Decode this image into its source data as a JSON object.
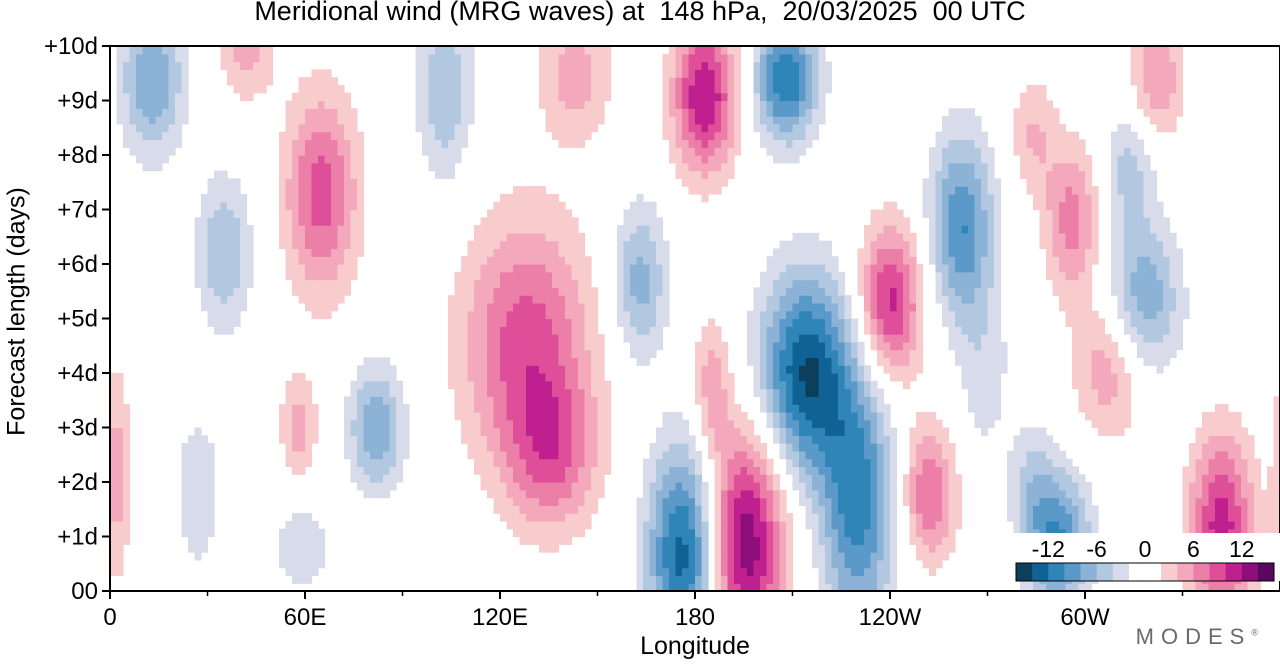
{
  "chart_data": {
    "type": "heatmap",
    "title": "Meridional wind (MRG waves) at  148 hPa,  20/03/2025  00 UTC",
    "xlabel": "Longitude",
    "ylabel": "Forecast length (days)",
    "x_ticks": [
      "0",
      "60E",
      "120E",
      "180",
      "120W",
      "60W"
    ],
    "y_ticks": [
      "00",
      "+1d",
      "+2d",
      "+3d",
      "+4d",
      "+5d",
      "+6d",
      "+7d",
      "+8d",
      "+9d",
      "+10d"
    ],
    "xlim": [
      0,
      360
    ],
    "ylim": [
      0,
      10
    ],
    "colorbar": {
      "tick_labels": [
        "-12",
        "-6",
        "0",
        "6",
        "12"
      ],
      "levels": [
        -14,
        -12,
        -10,
        -8,
        -6,
        -4,
        -2,
        2,
        4,
        6,
        8,
        10,
        12,
        14
      ],
      "colors": [
        "#0d3f5c",
        "#0f6394",
        "#2f84b8",
        "#5b9ac8",
        "#8cb3d6",
        "#b2c8e1",
        "#d8dcea",
        "#ffffff",
        "#f8cccc",
        "#f4a8bc",
        "#ec7fa7",
        "#df4f99",
        "#c0208f",
        "#8e0f7c",
        "#58085f"
      ]
    },
    "features": [
      {
        "lon": 195,
        "day": 0.9,
        "value": 14,
        "sx": 9,
        "sy": 1.5
      },
      {
        "lon": 177,
        "day": 0.7,
        "value": -14,
        "sx": 8,
        "sy": 1.4
      },
      {
        "lon": 214,
        "day": 4.0,
        "value": -14,
        "sx": 10,
        "sy": 1.3
      },
      {
        "lon": 230,
        "day": 1.6,
        "value": -11,
        "sx": 8,
        "sy": 1.7
      },
      {
        "lon": 208,
        "day": 9.4,
        "value": -12,
        "sx": 7,
        "sy": 0.8
      },
      {
        "lon": 183,
        "day": 9.1,
        "value": 12,
        "sx": 7,
        "sy": 1.0
      },
      {
        "lon": 240,
        "day": 5.3,
        "value": 11,
        "sx": 7,
        "sy": 1.0
      },
      {
        "lon": 262,
        "day": 6.7,
        "value": -10,
        "sx": 7,
        "sy": 1.2
      },
      {
        "lon": 252,
        "day": 1.8,
        "value": 8,
        "sx": 6,
        "sy": 0.9
      },
      {
        "lon": 128,
        "day": 4.6,
        "value": 9,
        "sx": 14,
        "sy": 1.6
      },
      {
        "lon": 136,
        "day": 2.5,
        "value": 7,
        "sx": 10,
        "sy": 1.0
      },
      {
        "lon": 65,
        "day": 7.3,
        "value": 9,
        "sx": 8,
        "sy": 1.3
      },
      {
        "lon": 82,
        "day": 3.0,
        "value": -8,
        "sx": 6,
        "sy": 0.8
      },
      {
        "lon": 35,
        "day": 6.2,
        "value": -6,
        "sx": 6,
        "sy": 1.0
      },
      {
        "lon": 13,
        "day": 9.4,
        "value": -8,
        "sx": 7,
        "sy": 1.0
      },
      {
        "lon": 42,
        "day": 10.0,
        "value": 5,
        "sx": 6,
        "sy": 0.7
      },
      {
        "lon": 103,
        "day": 9.2,
        "value": -6,
        "sx": 6,
        "sy": 1.2
      },
      {
        "lon": 143,
        "day": 9.5,
        "value": 5,
        "sx": 8,
        "sy": 0.9
      },
      {
        "lon": 163,
        "day": 5.7,
        "value": -7,
        "sx": 6,
        "sy": 1.0
      },
      {
        "lon": 296,
        "day": 6.8,
        "value": 7,
        "sx": 6,
        "sy": 1.0
      },
      {
        "lon": 318,
        "day": 5.3,
        "value": -8,
        "sx": 8,
        "sy": 1.0
      },
      {
        "lon": 308,
        "day": 4.1,
        "value": 6,
        "sx": 8,
        "sy": 0.9
      },
      {
        "lon": 314,
        "day": 7.8,
        "value": -5,
        "sx": 6,
        "sy": 0.8
      },
      {
        "lon": 322,
        "day": 9.4,
        "value": 6,
        "sx": 6,
        "sy": 0.9
      },
      {
        "lon": 342,
        "day": 1.2,
        "value": 11,
        "sx": 7,
        "sy": 1.2
      },
      {
        "lon": 292,
        "day": 0.9,
        "value": -10,
        "sx": 7,
        "sy": 0.9
      },
      {
        "lon": 27,
        "day": 1.8,
        "value": -4,
        "sx": 5,
        "sy": 1.0
      },
      {
        "lon": 2,
        "day": 2.2,
        "value": 5,
        "sx": 3,
        "sy": 1.4
      },
      {
        "lon": 58,
        "day": 3.0,
        "value": 5,
        "sx": 4,
        "sy": 0.7
      },
      {
        "lon": 59,
        "day": 0.8,
        "value": -4,
        "sx": 6,
        "sy": 0.6
      },
      {
        "lon": 185,
        "day": 3.8,
        "value": 5,
        "sx": 4,
        "sy": 0.9
      },
      {
        "lon": 269,
        "day": 4.0,
        "value": -3,
        "sx": 6,
        "sy": 1.2
      },
      {
        "lon": 284,
        "day": 2.0,
        "value": -4,
        "sx": 5,
        "sy": 0.8
      },
      {
        "lon": 284,
        "day": 8.4,
        "value": 4,
        "sx": 5,
        "sy": 0.8
      }
    ]
  }
}
